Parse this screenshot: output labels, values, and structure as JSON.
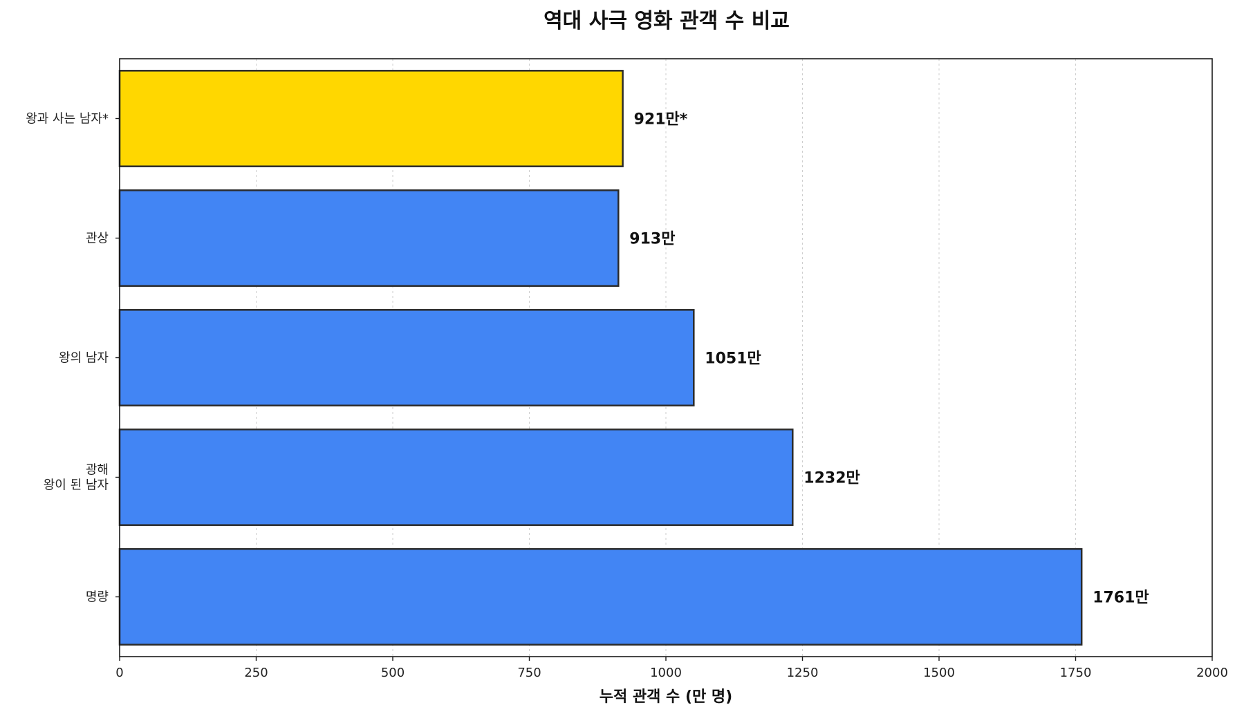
{
  "chart_data": {
    "type": "bar",
    "orientation": "horizontal",
    "title": "역대 사극 영화 관객 수 비교",
    "xlabel": "누적 관객 수 (만 명)",
    "ylabel": "",
    "xlim": [
      0,
      2000
    ],
    "xticks": [
      0,
      250,
      500,
      750,
      1000,
      1250,
      1500,
      1750,
      2000
    ],
    "grid": "x-dotted",
    "categories": [
      [
        "왕과 사는 남자*"
      ],
      [
        "관상"
      ],
      [
        "왕의 남자"
      ],
      [
        "광해",
        "왕이 된 남자"
      ],
      [
        "명량"
      ]
    ],
    "values": [
      921,
      913,
      1051,
      1232,
      1761
    ],
    "data_labels": [
      "921만*",
      "913만",
      "1051만",
      "1232만",
      "1761만"
    ],
    "colors": [
      "#FFD700",
      "#4285F4",
      "#4285F4",
      "#4285F4",
      "#4285F4"
    ],
    "edge_color": "#2b2b2b"
  }
}
